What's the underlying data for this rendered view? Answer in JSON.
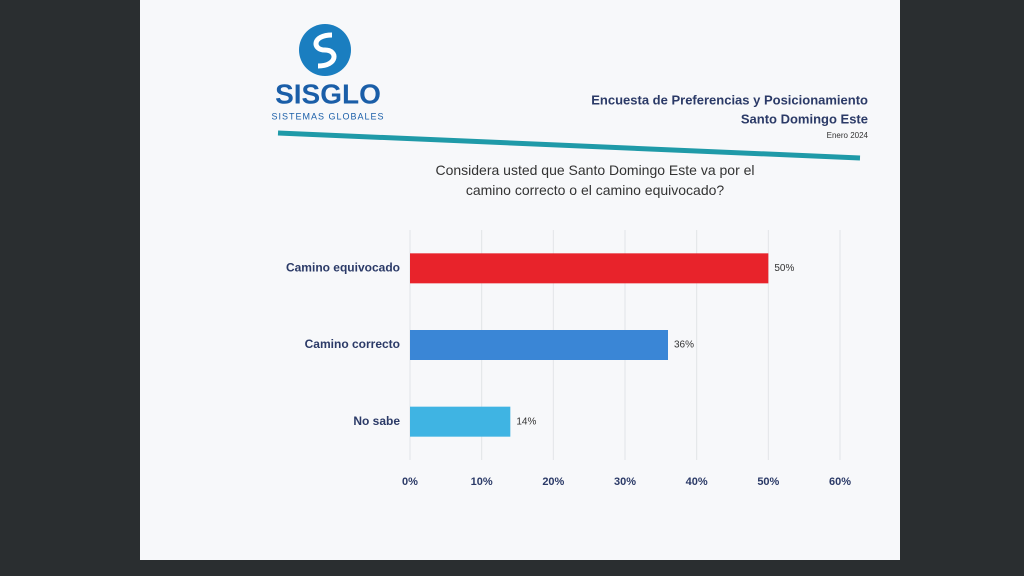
{
  "header": {
    "logo": "SISGLO",
    "logo_subtitle": "SISTEMAS GLOBALES",
    "survey": "Encuesta de Preferencias y Posicionamiento",
    "location": "Santo Domingo Este",
    "date": "Enero 2024"
  },
  "chart_data": {
    "type": "barh",
    "title": "Considera usted que Santo Domingo Este  va por el camino correcto o el camino equivocado?",
    "categories": [
      "Camino equivocado",
      "Camino correcto",
      "No sabe"
    ],
    "values": [
      50,
      36,
      14
    ],
    "value_labels": [
      "50%",
      "36%",
      "14%"
    ],
    "colors": [
      "#e8232b",
      "#3a86d6",
      "#3fb4e3"
    ],
    "xlim": [
      0,
      60
    ],
    "xticks": [
      {
        "value": 0,
        "label": "0%"
      },
      {
        "value": 10,
        "label": "10%"
      },
      {
        "value": 20,
        "label": "20%"
      },
      {
        "value": 30,
        "label": "30%"
      },
      {
        "value": 40,
        "label": "40%"
      },
      {
        "value": 50,
        "label": "50%"
      },
      {
        "value": 60,
        "label": "60%"
      }
    ],
    "grid": true
  }
}
